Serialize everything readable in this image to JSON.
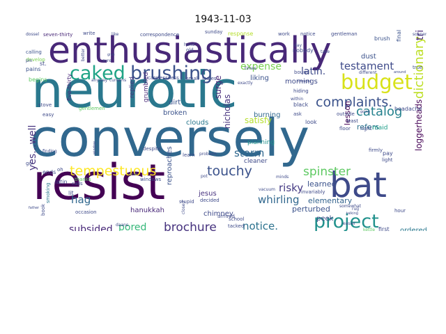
{
  "title": "1943-11-03",
  "words": [
    {
      "text": "neurotic",
      "color": "#2a788e"
    },
    {
      "text": "conversely",
      "color": "#31688e"
    },
    {
      "text": "resist",
      "color": "#440154"
    },
    {
      "text": "enthusiastically",
      "color": "#482878"
    },
    {
      "text": "bat",
      "color": "#3e4a89"
    },
    {
      "text": "brushing",
      "color": "#3b528b"
    },
    {
      "text": "caked",
      "color": "#20a486"
    },
    {
      "text": "budget",
      "color": "#d8e219"
    },
    {
      "text": "project",
      "color": "#21918c"
    },
    {
      "text": "complaints.",
      "color": "#3b528b"
    },
    {
      "text": "catalog",
      "color": "#26828e"
    },
    {
      "text": "testament",
      "color": "#3e4a89"
    },
    {
      "text": "tempestuous",
      "color": "#fde725"
    },
    {
      "text": "touchy",
      "color": "#3b528b"
    },
    {
      "text": "brochure",
      "color": "#46327e"
    },
    {
      "text": "spinster",
      "color": "#5ec962"
    },
    {
      "text": "dictionary",
      "color": "#bddf26"
    },
    {
      "text": "storm",
      "color": "#31688e"
    },
    {
      "text": "risky",
      "color": "#443983"
    },
    {
      "text": "whirling",
      "color": "#31688e"
    },
    {
      "text": "notice.",
      "color": "#2c728e"
    },
    {
      "text": "pored",
      "color": "#35b779"
    },
    {
      "text": "subsided",
      "color": "#482878"
    },
    {
      "text": "hag",
      "color": "#31688e"
    },
    {
      "text": "yes...well",
      "color": "#46327e"
    },
    {
      "text": "latin.",
      "color": "#3e4a89"
    },
    {
      "text": "expense",
      "color": "#7ad151"
    },
    {
      "text": "satisfy",
      "color": "#b5de2b"
    },
    {
      "text": "surge",
      "color": "#482878"
    },
    {
      "text": "nicholas",
      "color": "#46327e"
    },
    {
      "text": "lesson",
      "color": "#440154"
    },
    {
      "text": "loggerheads",
      "color": "#440154"
    },
    {
      "text": "learned",
      "color": "#3b528b"
    },
    {
      "text": "elementary",
      "color": "#33638d"
    },
    {
      "text": "refers",
      "color": "#2c728e"
    },
    {
      "text": "maid",
      "color": "#1f9e89"
    },
    {
      "text": "perturbed",
      "color": "#3b528b"
    },
    {
      "text": "hanukkah",
      "color": "#482878"
    },
    {
      "text": "jesus",
      "color": "#46327e"
    },
    {
      "text": "chimney",
      "color": "#3e4a89"
    },
    {
      "text": "reproaches",
      "color": "#3b528b"
    },
    {
      "text": "ordered",
      "color": "#2a788e"
    },
    {
      "text": "peek",
      "color": "#3e4a89"
    },
    {
      "text": "broken",
      "color": "#3b528b"
    },
    {
      "text": "clouds",
      "color": "#2a788e"
    },
    {
      "text": "burning",
      "color": "#31688e"
    },
    {
      "text": "dirt",
      "color": "#3b528b"
    },
    {
      "text": "cleaner",
      "color": "#3e4a89"
    },
    {
      "text": "planning",
      "color": "#21918c"
    },
    {
      "text": "grumbled",
      "color": "#482878"
    },
    {
      "text": "replied",
      "color": "#46327e"
    },
    {
      "text": "mornings",
      "color": "#3e4a89"
    },
    {
      "text": "liking",
      "color": "#3b528b"
    },
    {
      "text": "dust",
      "color": "#3b528b"
    },
    {
      "text": "seven-thirty",
      "color": "#482878"
    },
    {
      "text": "correspondence",
      "color": "#3e4a89"
    },
    {
      "text": "response",
      "color": "#b5de2b"
    },
    {
      "text": "gentleman",
      "color": "#3e4a89"
    },
    {
      "text": "brush",
      "color": "#3b528b"
    },
    {
      "text": "finally",
      "color": "#3b528b"
    },
    {
      "text": "trial",
      "color": "#482878"
    },
    {
      "text": "sooner",
      "color": "#3e4a89"
    },
    {
      "text": "latin",
      "color": "#3e4a89"
    },
    {
      "text": "ends",
      "color": "#3e4a89"
    },
    {
      "text": "smoking",
      "color": "#2a788e"
    },
    {
      "text": "finding",
      "color": "#3e4a89"
    },
    {
      "text": "begins",
      "color": "#5ec962"
    },
    {
      "text": "pains",
      "color": "#3b528b"
    },
    {
      "text": "st.",
      "color": "#3e4a89"
    },
    {
      "text": "calling",
      "color": "#3b528b"
    },
    {
      "text": "five-thirty",
      "color": "#482878"
    },
    {
      "text": "headache",
      "color": "#3e4a89"
    },
    {
      "text": "different",
      "color": "#3e4a89"
    },
    {
      "text": "true",
      "color": "#3b528b"
    },
    {
      "text": "nobody",
      "color": "#3e4a89"
    },
    {
      "text": "old",
      "color": "#3e4a89"
    },
    {
      "text": "write",
      "color": "#3e4a89"
    },
    {
      "text": "sunday",
      "color": "#3e4a89"
    },
    {
      "text": "work",
      "color": "#3e4a89"
    },
    {
      "text": "notice",
      "color": "#3e4a89"
    },
    {
      "text": "hand",
      "color": "#3e4a89"
    },
    {
      "text": "develop",
      "color": "#7ad151"
    },
    {
      "text": "black",
      "color": "#3e4a89"
    },
    {
      "text": "ask",
      "color": "#3e4a89"
    },
    {
      "text": "hiding",
      "color": "#3e4a89"
    },
    {
      "text": "stove",
      "color": "#3e4a89"
    },
    {
      "text": "instead",
      "color": "#3e4a89"
    },
    {
      "text": "easy",
      "color": "#3e4a89"
    },
    {
      "text": "gentlemen",
      "color": "#5ec962"
    },
    {
      "text": "curtains",
      "color": "#3e4a89"
    },
    {
      "text": "anyway",
      "color": "#3e4a89"
    },
    {
      "text": "look",
      "color": "#3e4a89"
    },
    {
      "text": "least",
      "color": "#3e4a89"
    },
    {
      "text": "right",
      "color": "#3e4a89"
    },
    {
      "text": "pay",
      "color": "#3e4a89"
    },
    {
      "text": "light",
      "color": "#3e4a89"
    },
    {
      "text": "firmly",
      "color": "#3e4a89"
    },
    {
      "text": "thanks",
      "color": "#5ec962"
    },
    {
      "text": "calls",
      "color": "#3e4a89"
    },
    {
      "text": "lit",
      "color": "#3e4a89"
    },
    {
      "text": "occasion",
      "color": "#3e4a89"
    },
    {
      "text": "window",
      "color": "#3e4a89"
    },
    {
      "text": "windows",
      "color": "#3e4a89"
    },
    {
      "text": "despite",
      "color": "#3e4a89"
    },
    {
      "text": "stupid",
      "color": "#3e4a89"
    },
    {
      "text": "closed",
      "color": "#3e4a89"
    },
    {
      "text": "decided",
      "color": "#3e4a89"
    },
    {
      "text": "arrived",
      "color": "#3e4a89"
    },
    {
      "text": "tacked",
      "color": "#3e4a89"
    },
    {
      "text": "vacuum",
      "color": "#3e4a89"
    },
    {
      "text": "minds",
      "color": "#3e4a89"
    },
    {
      "text": "invariably",
      "color": "#3e4a89"
    },
    {
      "text": "somewhat",
      "color": "#3e4a89"
    },
    {
      "text": "easier",
      "color": "#3e4a89"
    },
    {
      "text": "kettle",
      "color": "#5ec962"
    },
    {
      "text": "first",
      "color": "#3e4a89"
    },
    {
      "text": "learn",
      "color": "#3e4a89"
    },
    {
      "text": "problem",
      "color": "#3e4a89"
    },
    {
      "text": "carelessness",
      "color": "#3e4a89"
    },
    {
      "text": "small",
      "color": "#3e4a89"
    },
    {
      "text": "ladies",
      "color": "#3e4a89"
    },
    {
      "text": "exactly",
      "color": "#3e4a89"
    },
    {
      "text": "better",
      "color": "#3e4a89"
    },
    {
      "text": "sure",
      "color": "#3e4a89"
    },
    {
      "text": "give",
      "color": "#3e4a89"
    },
    {
      "text": "daans",
      "color": "#3e4a89"
    },
    {
      "text": "school",
      "color": "#3e4a89"
    },
    {
      "text": "rug",
      "color": "#3e4a89"
    },
    {
      "text": "going",
      "color": "#3e4a89"
    },
    {
      "text": "outside",
      "color": "#3e4a89"
    },
    {
      "text": "floor",
      "color": "#3e4a89"
    },
    {
      "text": "bound",
      "color": "#3e4a89"
    },
    {
      "text": "thought",
      "color": "#3e4a89"
    },
    {
      "text": "oh",
      "color": "#3e4a89"
    },
    {
      "text": "go",
      "color": "#3e4a89"
    },
    {
      "text": "pot",
      "color": "#3e4a89"
    },
    {
      "text": "neat",
      "color": "#3e4a89"
    },
    {
      "text": "book",
      "color": "#3e4a89"
    },
    {
      "text": "hour",
      "color": "#3e4a89"
    },
    {
      "text": "dossel",
      "color": "#3e4a89"
    },
    {
      "text": "pin",
      "color": "#3e4a89"
    },
    {
      "text": "like",
      "color": "#3e4a89"
    },
    {
      "text": "day",
      "color": "#3e4a89"
    },
    {
      "text": "take",
      "color": "#3e4a89"
    },
    {
      "text": "within",
      "color": "#3e4a89"
    },
    {
      "text": "times",
      "color": "#3e4a89"
    },
    {
      "text": "father",
      "color": "#3e4a89"
    },
    {
      "text": "talking",
      "color": "#3e4a89"
    },
    {
      "text": "around",
      "color": "#3e4a89"
    }
  ]
}
